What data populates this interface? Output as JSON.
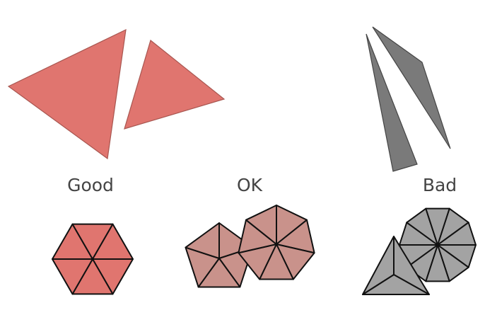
{
  "labels": {
    "good": "Good",
    "ok": "OK",
    "bad": "Bad"
  },
  "colors": {
    "good_fill": "#e0756f",
    "good_stroke": "#a85650",
    "ok_fill": "#c9928b",
    "bad_fill": "#7a7a7a",
    "bad_mesh_fill": "#a3a3a3",
    "mesh_stroke": "#111111",
    "label_text": "#444444"
  }
}
